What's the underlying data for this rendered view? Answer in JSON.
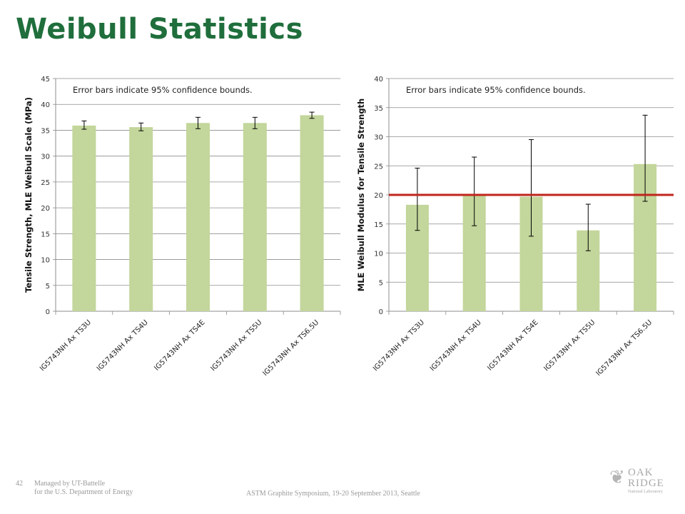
{
  "slide": {
    "title": "Weibull Statistics",
    "page_number": "42",
    "managed_by_line1": "Managed by UT-Battelle",
    "managed_by_line2": "for the U.S. Department of Energy",
    "conference": "ASTM Graphite Symposium, 19-20 September 2013, Seattle",
    "logo": {
      "line1": "OAK",
      "line2": "RIDGE",
      "line3": "National Laboratory",
      "icon": "oak-leaf-icon"
    }
  },
  "colors": {
    "title": "#1f6e3c",
    "bar": "#c3d69b",
    "ref_line": "#c0251c",
    "grid": "#8c8c8c"
  },
  "chart_data": [
    {
      "type": "bar",
      "title": "",
      "annotation": "Error bars indicate 95% confidence bounds.",
      "xlabel": "",
      "ylabel": "Tensile Strength, MLE Weibull Scale (MPa)",
      "categories": [
        "IG5743NH Ax TS3U",
        "IG5743NH Ax TS4U",
        "IG5743NH Ax TS4E",
        "IG5743NH Ax TS5U",
        "IG5743NH Ax TS6.5U"
      ],
      "values": [
        35.9,
        35.6,
        36.4,
        36.4,
        37.9
      ],
      "error_low": [
        35.2,
        34.9,
        35.3,
        35.3,
        37.3
      ],
      "error_high": [
        36.8,
        36.4,
        37.5,
        37.5,
        38.5
      ],
      "ylim": [
        0,
        45
      ],
      "yticks": [
        0,
        5,
        10,
        15,
        20,
        25,
        30,
        35,
        40,
        45
      ],
      "grid": true
    },
    {
      "type": "bar",
      "title": "",
      "annotation": "Error bars indicate 95% confidence bounds.",
      "xlabel": "",
      "ylabel": "MLE Weibull Modulus for Tensile Strength",
      "categories": [
        "IG5743NH Ax TS3U",
        "IG5743NH Ax TS4U",
        "IG5743NH Ax TS4E",
        "IG5743NH Ax TS5U",
        "IG5743NH Ax TS6.5U"
      ],
      "values": [
        18.3,
        20.0,
        19.7,
        13.9,
        25.3
      ],
      "error_low": [
        13.9,
        14.7,
        12.9,
        10.4,
        18.9
      ],
      "error_high": [
        24.6,
        26.5,
        29.5,
        18.4,
        33.7
      ],
      "ylim": [
        0,
        40
      ],
      "yticks": [
        0,
        5,
        10,
        15,
        20,
        25,
        30,
        35,
        40
      ],
      "grid": true,
      "reference_line": 20
    }
  ]
}
